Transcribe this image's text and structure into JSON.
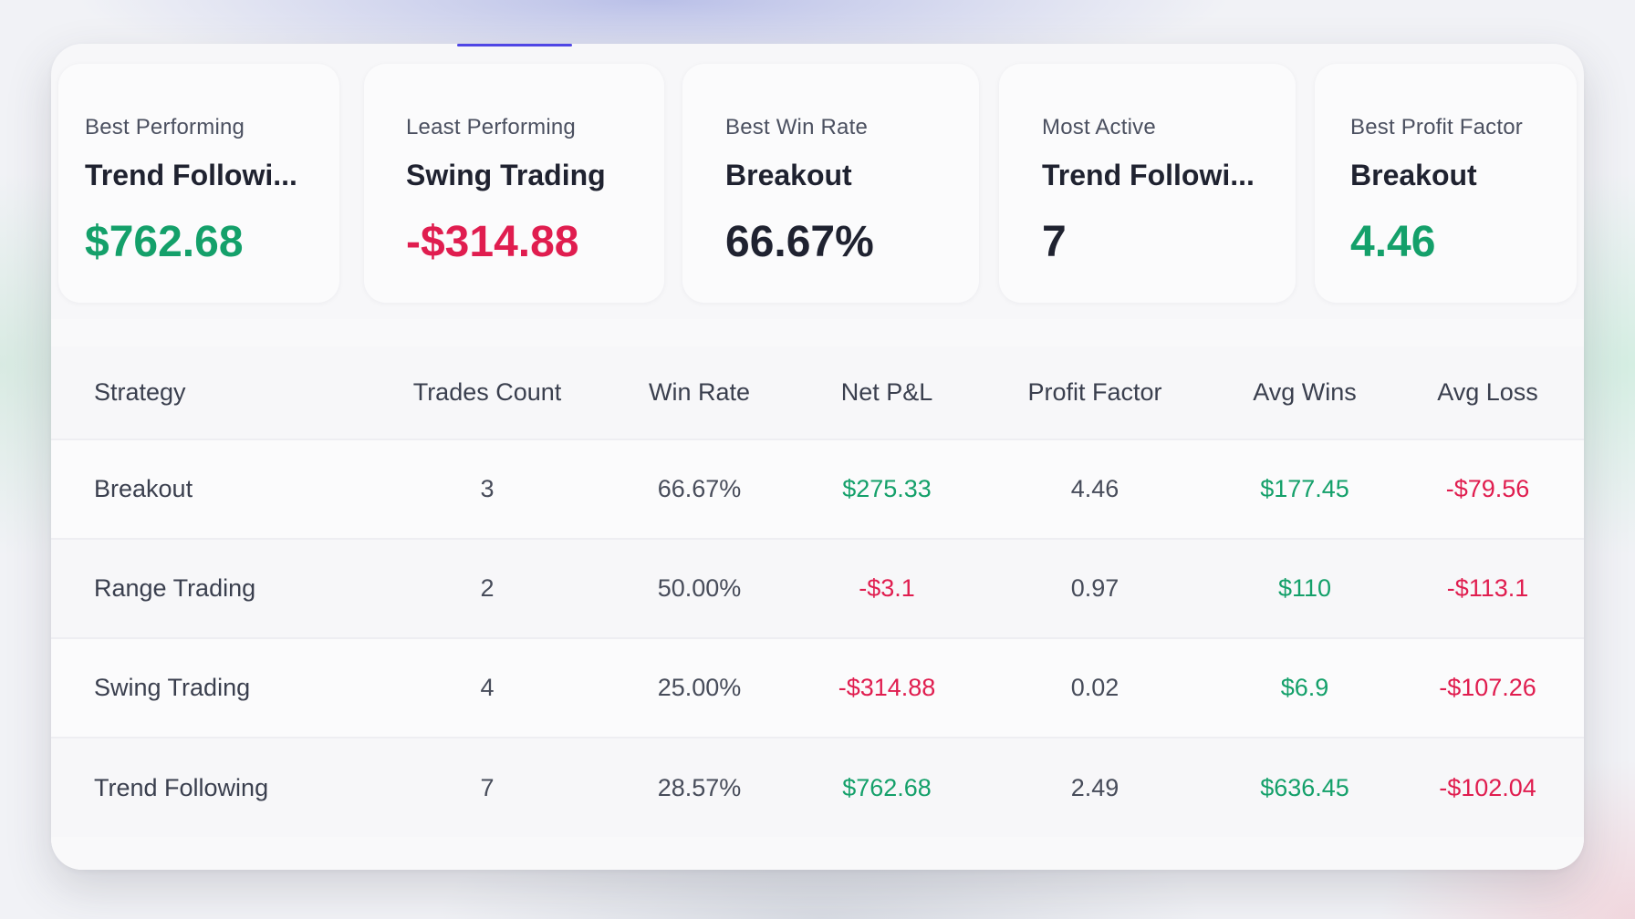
{
  "colors": {
    "positive": "#14a06a",
    "negative": "#e01d4f",
    "accent": "#4f46e5"
  },
  "summary_cards": [
    {
      "label": "Best Performing",
      "name": "Trend Followi...",
      "value": "$762.68",
      "tone": "positive"
    },
    {
      "label": "Least Performing",
      "name": "Swing Trading",
      "value": "-$314.88",
      "tone": "negative"
    },
    {
      "label": "Best Win Rate",
      "name": "Breakout",
      "value": "66.67%",
      "tone": "neutral"
    },
    {
      "label": "Most Active",
      "name": "Trend Followi...",
      "value": "7",
      "tone": "neutral"
    },
    {
      "label": "Best Profit Factor",
      "name": "Breakout",
      "value": "4.46",
      "tone": "positive"
    }
  ],
  "table": {
    "headers": [
      "Strategy",
      "Trades Count",
      "Win Rate",
      "Net P&L",
      "Profit Factor",
      "Avg Wins",
      "Avg Loss"
    ],
    "rows": [
      {
        "strategy": "Breakout",
        "trades": "3",
        "win_rate": "66.67%",
        "net_pnl": "$275.33",
        "profit_factor": "4.46",
        "avg_wins": "$177.45",
        "avg_loss": "-$79.56"
      },
      {
        "strategy": "Range Trading",
        "trades": "2",
        "win_rate": "50.00%",
        "net_pnl": "-$3.1",
        "profit_factor": "0.97",
        "avg_wins": "$110",
        "avg_loss": "-$113.1"
      },
      {
        "strategy": "Swing Trading",
        "trades": "4",
        "win_rate": "25.00%",
        "net_pnl": "-$314.88",
        "profit_factor": "0.02",
        "avg_wins": "$6.9",
        "avg_loss": "-$107.26"
      },
      {
        "strategy": "Trend Following",
        "trades": "7",
        "win_rate": "28.57%",
        "net_pnl": "$762.68",
        "profit_factor": "2.49",
        "avg_wins": "$636.45",
        "avg_loss": "-$102.04"
      }
    ]
  }
}
